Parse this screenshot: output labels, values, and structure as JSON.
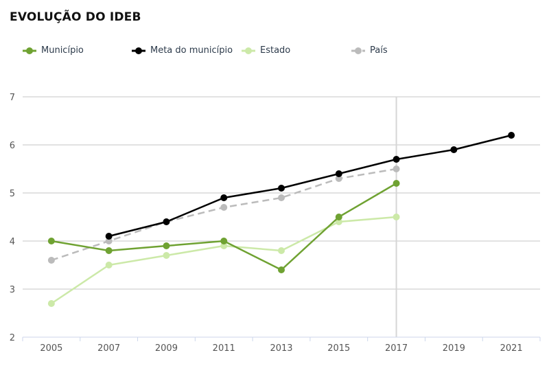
{
  "chart_data": {
    "type": "line",
    "title": "EVOLUÇÃO DO IDEB",
    "xlabel": "",
    "ylabel": "",
    "x": [
      "2005",
      "2007",
      "2009",
      "2011",
      "2013",
      "2015",
      "2017",
      "2019",
      "2021"
    ],
    "ylim": [
      2,
      7
    ],
    "yticks": [
      "2",
      "3",
      "4",
      "5",
      "6",
      "7"
    ],
    "grid": true,
    "legend_position": "top",
    "highlight_x": "2017",
    "series": [
      {
        "name": "Município",
        "color": "#6fa232",
        "dashed": false,
        "values": [
          4.0,
          3.8,
          3.9,
          4.0,
          3.4,
          4.5,
          5.2,
          null,
          null
        ]
      },
      {
        "name": "Meta do município",
        "color": "#000000",
        "dashed": false,
        "values": [
          null,
          4.1,
          4.4,
          4.9,
          5.1,
          5.4,
          5.7,
          5.9,
          6.2
        ]
      },
      {
        "name": "Estado",
        "color": "#cce9a8",
        "dashed": false,
        "values": [
          2.7,
          3.5,
          3.7,
          3.9,
          3.8,
          4.4,
          4.5,
          null,
          null
        ]
      },
      {
        "name": "País",
        "color": "#bbbbbb",
        "dashed": true,
        "values": [
          3.6,
          4.0,
          4.4,
          4.7,
          4.9,
          5.3,
          5.5,
          null,
          null
        ]
      }
    ]
  }
}
